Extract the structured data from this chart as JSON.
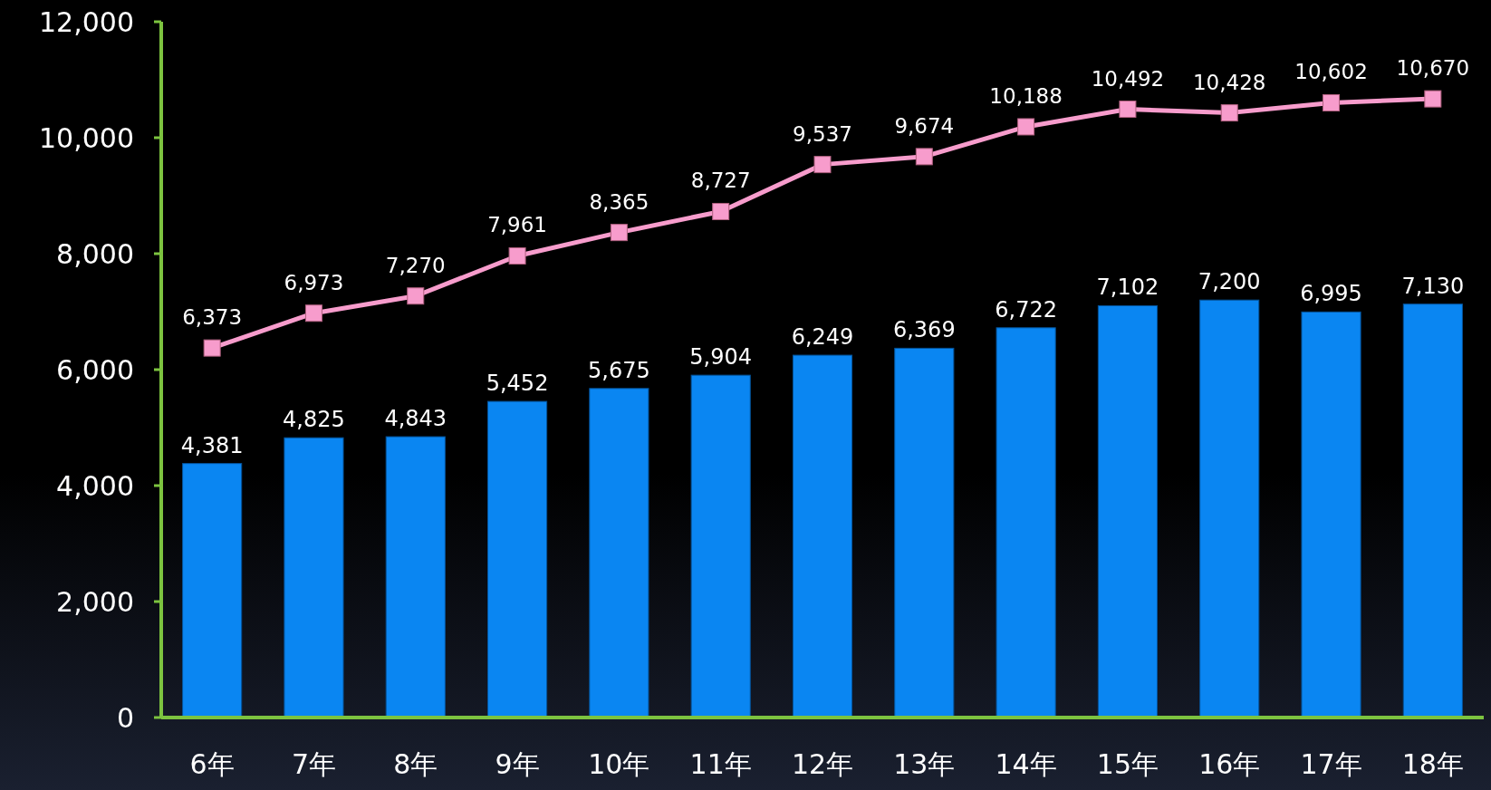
{
  "chart_data": {
    "type": "bar",
    "categories": [
      "6年",
      "7年",
      "8年",
      "9年",
      "10年",
      "11年",
      "12年",
      "13年",
      "14年",
      "15年",
      "16年",
      "17年",
      "18年"
    ],
    "series": [
      {
        "color": "#0a86f2",
        "values": [
          4381,
          4825,
          4843,
          5452,
          5675,
          5904,
          6249,
          6369,
          6722,
          7102,
          7200,
          6995,
          7130
        ],
        "value_labels": [
          "4,381",
          "4,825",
          "4,843",
          "5,452",
          "5,675",
          "5,904",
          "6,249",
          "6,369",
          "6,722",
          "7,102",
          "7,200",
          "6,995",
          "7,130"
        ]
      },
      {
        "type": "line",
        "color": "#f79ccc",
        "marker": "square",
        "values": [
          6373,
          6973,
          7270,
          7961,
          8365,
          8727,
          9537,
          9674,
          10188,
          10492,
          10428,
          10602,
          10670
        ],
        "value_labels": [
          "6,373",
          "6,973",
          "7,270",
          "7,961",
          "8,365",
          "8,727",
          "9,537",
          "9,674",
          "10,188",
          "10,492",
          "10,428",
          "10,602",
          "10,670"
        ]
      }
    ],
    "ylim": [
      0,
      12000
    ],
    "yticks": [
      {
        "value": 0,
        "label": "0"
      },
      {
        "value": 2000,
        "label": "2,000"
      },
      {
        "value": 4000,
        "label": "4,000"
      },
      {
        "value": 6000,
        "label": "6,000"
      },
      {
        "value": 8000,
        "label": "8,000"
      },
      {
        "value": 10000,
        "label": "10,000"
      },
      {
        "value": 12000,
        "label": "12,000"
      }
    ],
    "grid": false
  }
}
